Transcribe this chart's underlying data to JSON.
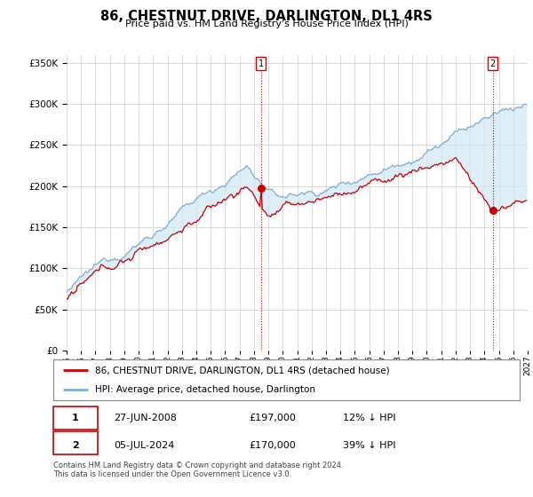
{
  "title": "86, CHESTNUT DRIVE, DARLINGTON, DL1 4RS",
  "subtitle": "Price paid vs. HM Land Registry's House Price Index (HPI)",
  "legend_label_red": "86, CHESTNUT DRIVE, DARLINGTON, DL1 4RS (detached house)",
  "legend_label_blue": "HPI: Average price, detached house, Darlington",
  "transaction1_date": "27-JUN-2008",
  "transaction1_price": "£197,000",
  "transaction1_hpi": "12% ↓ HPI",
  "transaction2_date": "05-JUL-2024",
  "transaction2_price": "£170,000",
  "transaction2_hpi": "39% ↓ HPI",
  "footnote": "Contains HM Land Registry data © Crown copyright and database right 2024.\nThis data is licensed under the Open Government Licence v3.0.",
  "ylim": [
    0,
    360000
  ],
  "yticks": [
    0,
    50000,
    100000,
    150000,
    200000,
    250000,
    300000,
    350000
  ],
  "red_color": "#cc0000",
  "blue_color": "#7fb0d8",
  "blue_fill_color": "#d0e8f5",
  "vline_color": "#cc0000",
  "background_color": "#ffffff",
  "grid_color": "#cccccc",
  "t1_year": 2008.5,
  "t1_price": 197000,
  "t2_year": 2024.583,
  "t2_price": 170000
}
